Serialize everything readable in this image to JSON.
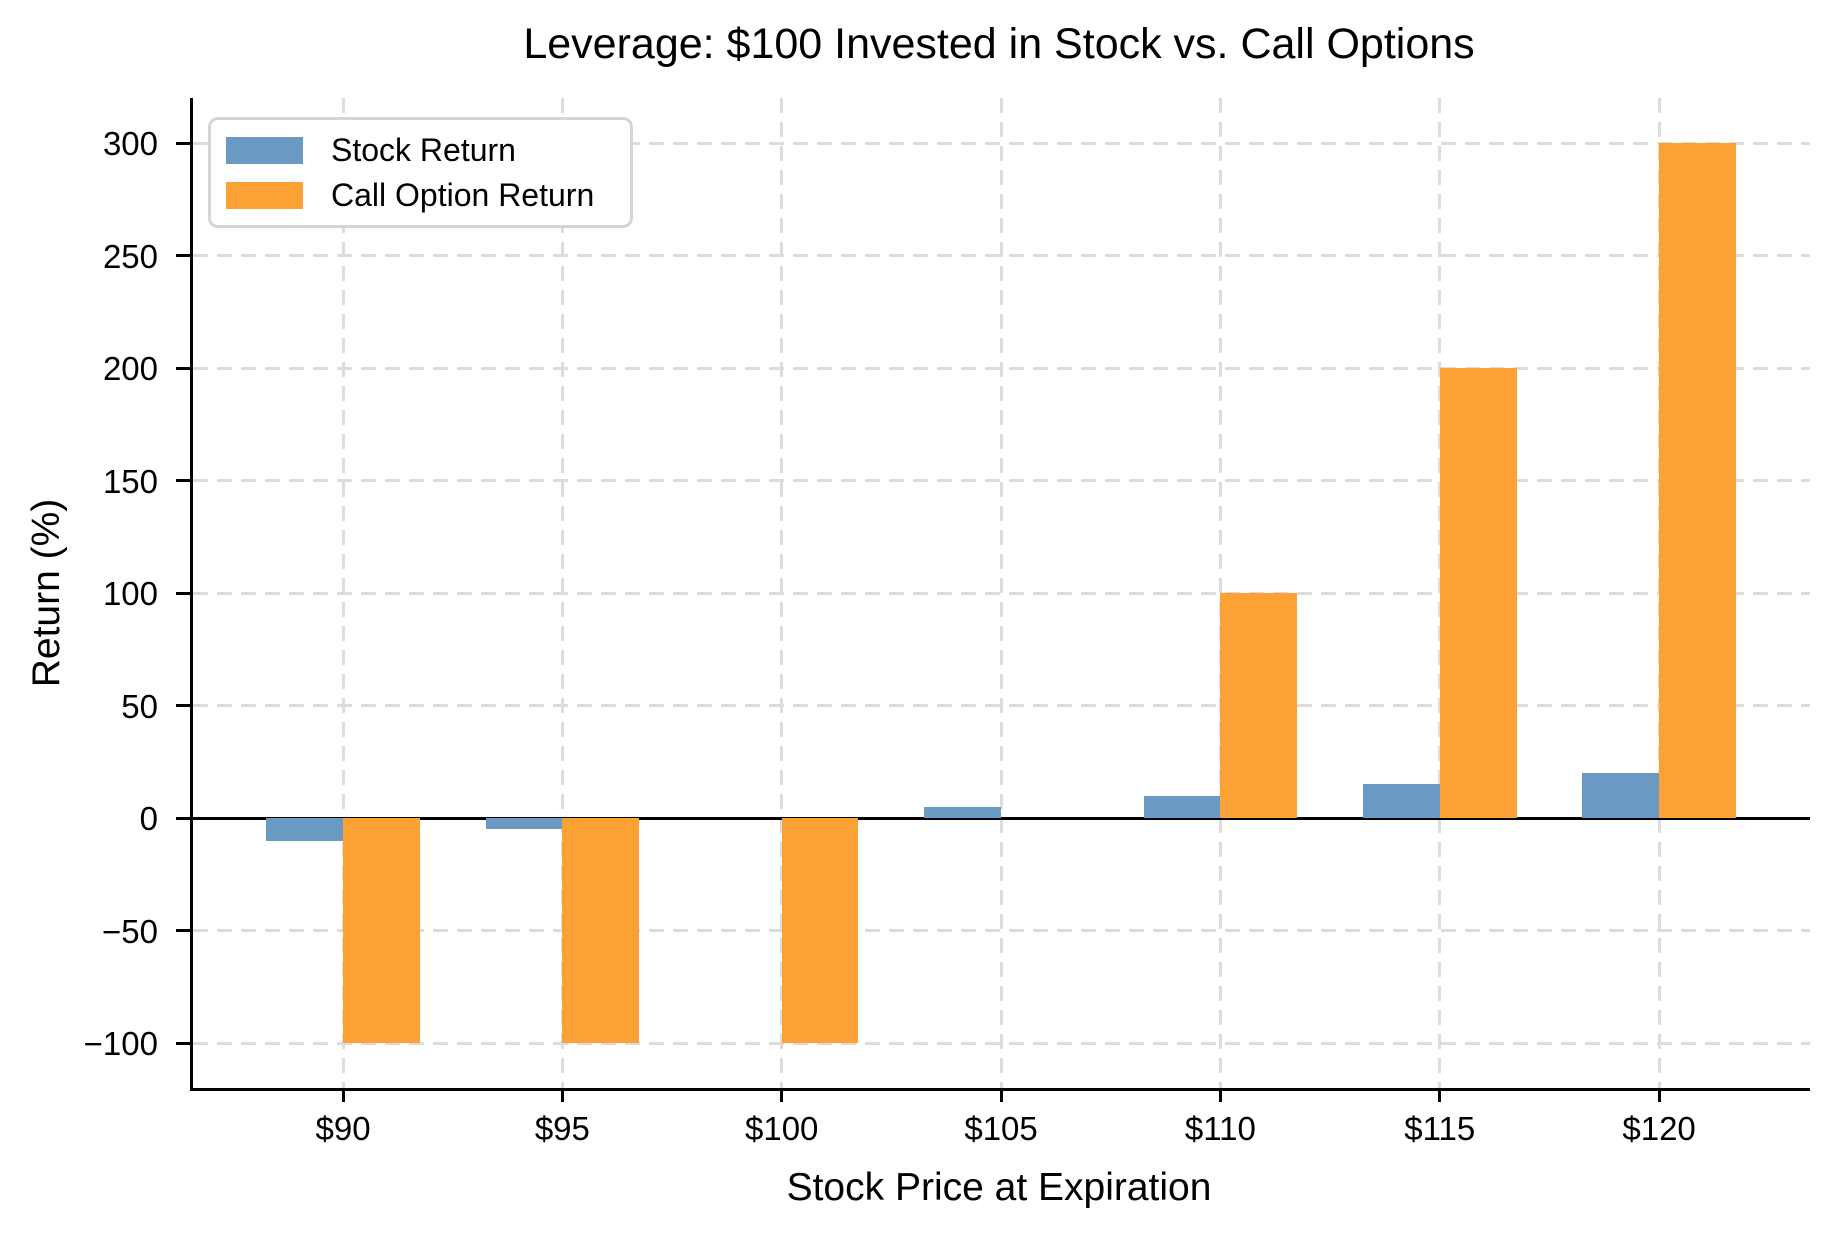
{
  "chart_data": {
    "type": "bar",
    "title": "Leverage: $100 Invested in Stock vs. Call Options",
    "xlabel": "Stock Price at Expiration",
    "ylabel": "Return (%)",
    "categories": [
      "$90",
      "$95",
      "$100",
      "$105",
      "$110",
      "$115",
      "$120"
    ],
    "series": [
      {
        "name": "Stock Return",
        "color": "#6A9AC4",
        "values": [
          -10,
          -5,
          0,
          5,
          10,
          15,
          20
        ]
      },
      {
        "name": "Call Option Return",
        "color": "#FCA235",
        "values": [
          -100,
          -100,
          -100,
          0,
          100,
          200,
          300
        ]
      }
    ],
    "y_ticks": [
      300,
      250,
      200,
      150,
      100,
      50,
      0,
      -50,
      -100
    ],
    "y_tick_labels": [
      "300",
      "250",
      "200",
      "150",
      "100",
      "50",
      "0",
      "−50",
      "−100"
    ],
    "ylim": [
      -120,
      320
    ],
    "xlim": [
      -0.684,
      6.688
    ],
    "bar_width": 0.35,
    "grid": "dashed",
    "grid_color": "#DCDCDC",
    "zero_line_color": "#000000",
    "axis_color": "#000000",
    "background_color": "#FFFFFF",
    "legend": {
      "position": "upper left"
    }
  }
}
